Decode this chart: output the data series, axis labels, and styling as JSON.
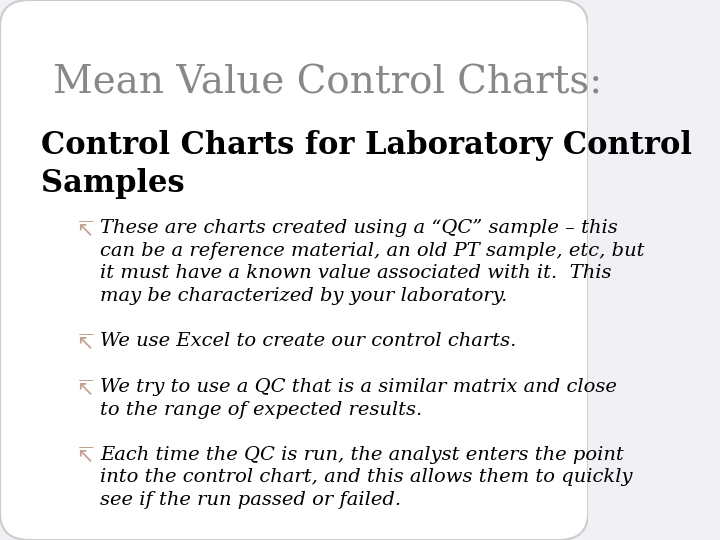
{
  "background_color": "#f0f0f5",
  "box_color": "#ffffff",
  "title": "Mean Value Control Charts:",
  "title_color": "#888888",
  "title_fontsize": 28,
  "subtitle": "Control Charts for Laboratory Control\nSamples",
  "subtitle_color": "#000000",
  "subtitle_fontsize": 22,
  "bullet_symbol": "↸",
  "bullet_color": "#c0a090",
  "bullet_fontsize": 14,
  "bullets": [
    "These are charts created using a “QC” sample – this\ncan be a reference material, an old PT sample, etc, but\nit must have a known value associated with it.  This\nmay be characterized by your laboratory.",
    "We use Excel to create our control charts.",
    "We try to use a QC that is a similar matrix and close\nto the range of expected results.",
    "Each time the QC is run, the analyst enters the point\ninto the control chart, and this allows them to quickly\nsee if the run passed or failed."
  ]
}
